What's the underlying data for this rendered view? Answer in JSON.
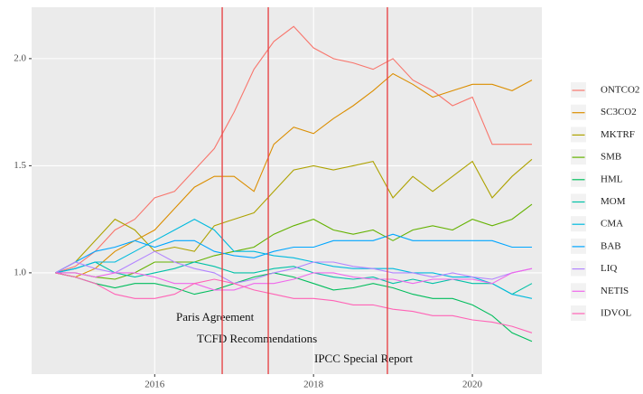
{
  "chart_data": {
    "type": "line",
    "x": [
      2014.75,
      2015,
      2015.25,
      2015.5,
      2015.75,
      2016,
      2016.25,
      2016.5,
      2016.75,
      2017,
      2017.25,
      2017.5,
      2017.75,
      2018,
      2018.25,
      2018.5,
      2018.75,
      2019,
      2019.25,
      2019.5,
      2019.75,
      2020,
      2020.25,
      2020.5,
      2020.75
    ],
    "series": [
      {
        "name": "ONTCO2",
        "color": "#F8766D",
        "values": [
          1.0,
          1.03,
          1.1,
          1.2,
          1.25,
          1.35,
          1.38,
          1.48,
          1.58,
          1.75,
          1.95,
          2.08,
          2.15,
          2.05,
          2.0,
          1.98,
          1.95,
          2.0,
          1.9,
          1.85,
          1.78,
          1.82,
          1.6,
          1.6,
          1.6
        ]
      },
      {
        "name": "SC3CO2",
        "color": "#DB8E00",
        "values": [
          1.0,
          0.98,
          1.02,
          1.1,
          1.15,
          1.2,
          1.3,
          1.4,
          1.45,
          1.45,
          1.38,
          1.6,
          1.68,
          1.65,
          1.72,
          1.78,
          1.85,
          1.93,
          1.88,
          1.82,
          1.85,
          1.88,
          1.88,
          1.85,
          1.9
        ]
      },
      {
        "name": "MKTRF",
        "color": "#AEA200",
        "values": [
          1.0,
          1.05,
          1.15,
          1.25,
          1.2,
          1.1,
          1.12,
          1.1,
          1.22,
          1.25,
          1.28,
          1.38,
          1.48,
          1.5,
          1.48,
          1.5,
          1.52,
          1.35,
          1.45,
          1.38,
          1.45,
          1.52,
          1.35,
          1.45,
          1.53
        ]
      },
      {
        "name": "SMB",
        "color": "#64B200",
        "values": [
          1.0,
          1.0,
          0.98,
          0.97,
          1.0,
          1.05,
          1.05,
          1.05,
          1.08,
          1.1,
          1.12,
          1.18,
          1.22,
          1.25,
          1.2,
          1.18,
          1.2,
          1.15,
          1.2,
          1.22,
          1.2,
          1.25,
          1.22,
          1.25,
          1.32
        ]
      },
      {
        "name": "HML",
        "color": "#00BD5C",
        "values": [
          1.0,
          0.98,
          0.95,
          0.93,
          0.95,
          0.95,
          0.93,
          0.9,
          0.92,
          0.95,
          0.98,
          1.0,
          0.98,
          0.95,
          0.92,
          0.93,
          0.95,
          0.93,
          0.9,
          0.88,
          0.88,
          0.85,
          0.8,
          0.72,
          0.68
        ]
      },
      {
        "name": "MOM",
        "color": "#00C1A7",
        "values": [
          1.0,
          1.02,
          1.05,
          1.0,
          0.98,
          1.0,
          1.02,
          1.05,
          1.03,
          1.0,
          1.0,
          1.02,
          1.03,
          1.0,
          0.98,
          0.97,
          0.98,
          0.95,
          0.97,
          0.95,
          0.97,
          0.95,
          0.95,
          0.9,
          0.95
        ]
      },
      {
        "name": "CMA",
        "color": "#00BADE",
        "values": [
          1.0,
          1.02,
          1.05,
          1.05,
          1.1,
          1.15,
          1.2,
          1.25,
          1.2,
          1.1,
          1.1,
          1.08,
          1.07,
          1.05,
          1.03,
          1.02,
          1.02,
          1.02,
          1.0,
          1.0,
          0.98,
          0.98,
          0.95,
          0.9,
          0.88
        ]
      },
      {
        "name": "BAB",
        "color": "#00A6FF",
        "values": [
          1.0,
          1.05,
          1.1,
          1.12,
          1.15,
          1.12,
          1.15,
          1.15,
          1.1,
          1.08,
          1.07,
          1.1,
          1.12,
          1.12,
          1.15,
          1.15,
          1.15,
          1.18,
          1.15,
          1.15,
          1.15,
          1.15,
          1.15,
          1.12,
          1.12
        ]
      },
      {
        "name": "LIQ",
        "color": "#B385FF",
        "values": [
          1.0,
          1.05,
          1.02,
          1.0,
          1.05,
          1.1,
          1.05,
          1.02,
          1.0,
          0.95,
          0.97,
          1.0,
          1.02,
          1.05,
          1.05,
          1.03,
          1.02,
          1.0,
          1.0,
          0.98,
          1.0,
          0.98,
          0.97,
          1.0,
          1.02
        ]
      },
      {
        "name": "NETIS",
        "color": "#EF67EB",
        "values": [
          1.0,
          1.0,
          0.98,
          1.0,
          1.0,
          0.98,
          0.95,
          0.95,
          0.92,
          0.92,
          0.95,
          0.95,
          0.97,
          1.0,
          1.0,
          0.98,
          0.97,
          0.97,
          0.95,
          0.97,
          0.97,
          0.97,
          0.95,
          1.0,
          1.02
        ]
      },
      {
        "name": "IDVOL",
        "color": "#FF63B6",
        "values": [
          1.0,
          0.98,
          0.95,
          0.9,
          0.88,
          0.88,
          0.9,
          0.95,
          0.97,
          0.95,
          0.92,
          0.9,
          0.88,
          0.88,
          0.87,
          0.85,
          0.85,
          0.83,
          0.82,
          0.8,
          0.8,
          0.78,
          0.77,
          0.75,
          0.72
        ]
      }
    ],
    "xlim": [
      2014.45,
      2020.875
    ],
    "ylim": [
      0.527,
      2.24
    ],
    "xticks": [
      2016,
      2018,
      2020
    ],
    "yticks": [
      {
        "value": 1,
        "label": "1.0"
      },
      1.5,
      {
        "value": 2,
        "label": "2.0"
      }
    ],
    "grid": true,
    "vlines": [
      2016.85,
      2017.43,
      2018.93
    ],
    "vline_color": "#E8474A",
    "annotations": [
      "Paris Agreement",
      "TCFD Recommendations",
      "IPCC Special Report"
    ],
    "legend": "right"
  }
}
